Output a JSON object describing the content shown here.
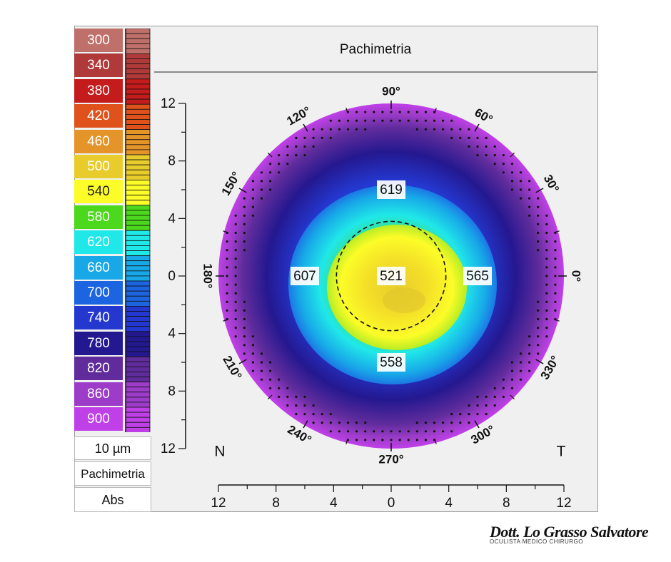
{
  "header": {
    "title": "Pachimetria"
  },
  "legend": {
    "items": [
      {
        "label": "300",
        "color": "#c0706a"
      },
      {
        "label": "340",
        "color": "#b03a3a"
      },
      {
        "label": "380",
        "color": "#c41c1c"
      },
      {
        "label": "420",
        "color": "#e0521c"
      },
      {
        "label": "460",
        "color": "#e49428"
      },
      {
        "label": "500",
        "color": "#e8cc2c"
      },
      {
        "label": "540",
        "color": "#fcfc28"
      },
      {
        "label": "580",
        "color": "#4cd81c"
      },
      {
        "label": "620",
        "color": "#20e8e8"
      },
      {
        "label": "660",
        "color": "#18a8e8"
      },
      {
        "label": "700",
        "color": "#1c64e0"
      },
      {
        "label": "740",
        "color": "#2438d0"
      },
      {
        "label": "780",
        "color": "#241890"
      },
      {
        "label": "820",
        "color": "#602c9c"
      },
      {
        "label": "860",
        "color": "#9c3cc8"
      },
      {
        "label": "900",
        "color": "#c040e8"
      }
    ],
    "step_label": "10 µm",
    "mode_label": "Pachimetria",
    "type_label": "Abs"
  },
  "chart_data": {
    "type": "heatmap",
    "title": "Pachimetria",
    "units": "µm",
    "x_axis": {
      "ticks": [
        "12",
        "8",
        "4",
        "0",
        "4",
        "8",
        "12"
      ],
      "range": [
        -12,
        12
      ]
    },
    "y_axis": {
      "ticks": [
        "12",
        "8",
        "4",
        "0",
        "4",
        "8",
        "12"
      ],
      "range": [
        -12,
        12
      ]
    },
    "angle_labels": [
      "0°",
      "30°",
      "60°",
      "90°",
      "120°",
      "150°",
      "180°",
      "210°",
      "240°",
      "270°",
      "300°",
      "330°"
    ],
    "side_labels": {
      "nasal": "N",
      "temporal": "T"
    },
    "values": [
      {
        "label": "521",
        "x": 0,
        "y": 0
      },
      {
        "label": "619",
        "x": 0,
        "y": 6
      },
      {
        "label": "558",
        "x": 0,
        "y": -6
      },
      {
        "label": "607",
        "x": -6,
        "y": 0
      },
      {
        "label": "565",
        "x": 6,
        "y": 0
      }
    ],
    "pupil_circle_radius": 3.8
  },
  "signature": {
    "name": "Dott. Lo Grasso Salvatore",
    "subtitle": "OCULISTA   MEDICO CHIRURGO"
  }
}
